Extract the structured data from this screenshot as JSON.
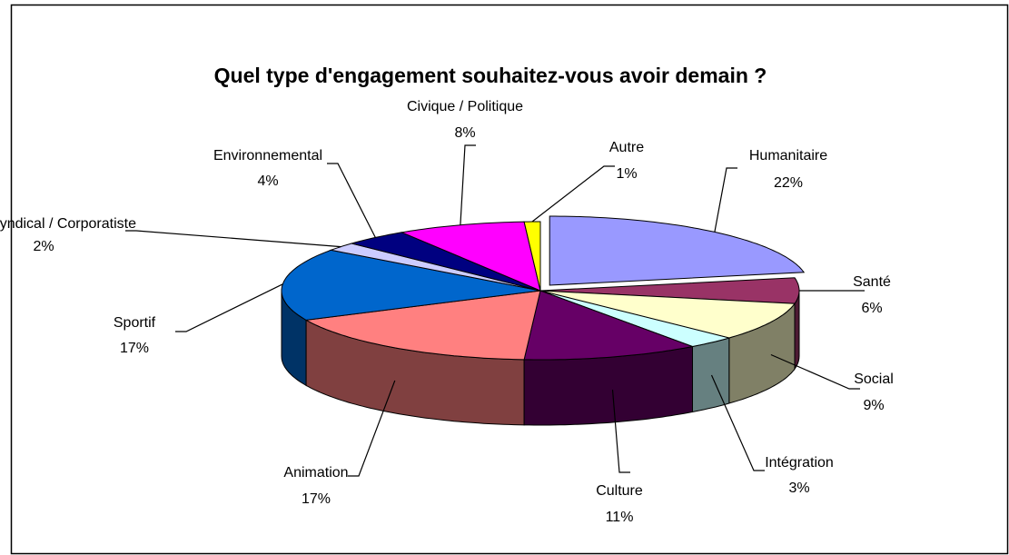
{
  "chart_data": {
    "type": "pie3d",
    "title": "Quel type d'engagement souhaitez-vous avoir demain ?",
    "categories": [
      "Humanitaire",
      "Santé",
      "Social",
      "Intégration",
      "Culture",
      "Animation",
      "Sportif",
      "Syndical / Corporatiste",
      "Environnemental",
      "Civique / Politique",
      "Autre"
    ],
    "values": [
      22,
      6,
      9,
      3,
      11,
      17,
      17,
      2,
      4,
      8,
      1
    ],
    "value_labels": [
      "22%",
      "6%",
      "9%",
      "3%",
      "11%",
      "17%",
      "17%",
      "2%",
      "4%",
      "8%",
      "1%"
    ],
    "colors": [
      "#9999ff",
      "#993366",
      "#ffffcc",
      "#ccffff",
      "#660066",
      "#ff8080",
      "#0066cc",
      "#ccccff",
      "#000080",
      "#ff00ff",
      "#ffff00"
    ],
    "exploded": [
      0
    ]
  }
}
